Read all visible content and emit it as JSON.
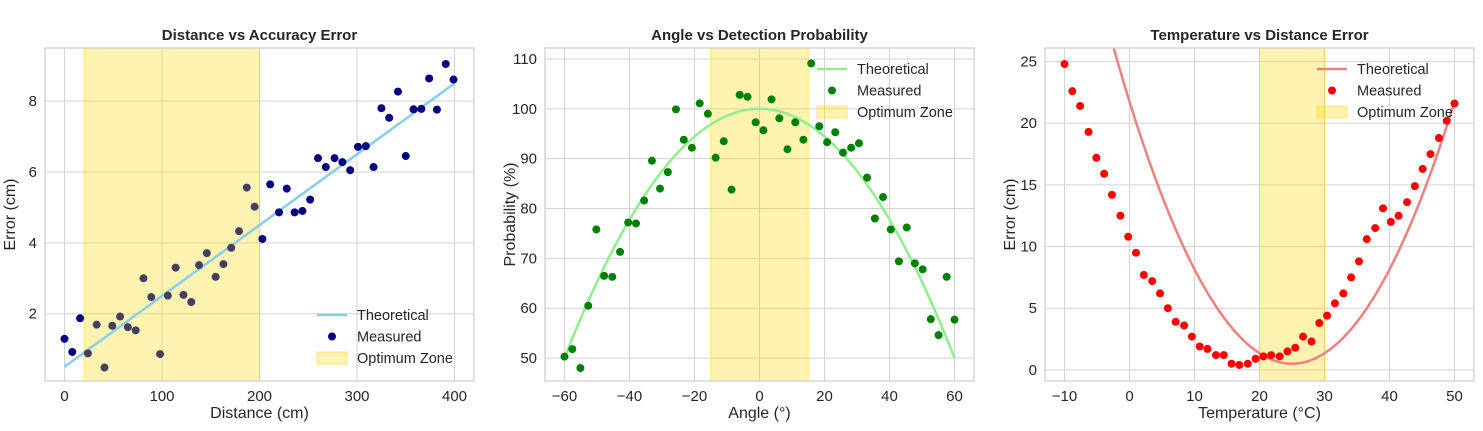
{
  "chart_data": [
    {
      "type": "scatter",
      "title": "Distance vs Accuracy Error",
      "xlabel": "Distance (cm)",
      "ylabel": "Error (cm)",
      "xlim": [
        -20,
        420
      ],
      "ylim": [
        0.1,
        9.5
      ],
      "xticks": [
        0,
        100,
        200,
        300,
        400
      ],
      "yticks": [
        2,
        4,
        6,
        8
      ],
      "grid": true,
      "legend": "bottom-right",
      "optimum_zone": {
        "label": "Optimum Zone",
        "x": [
          20,
          200
        ],
        "color": "#ffd700"
      },
      "theoretical": {
        "name": "Theoretical",
        "color": "#87ceeb",
        "x": [
          0,
          400
        ],
        "y": [
          0.5,
          8.5
        ]
      },
      "measured": {
        "name": "Measured",
        "color": "#000080",
        "x": [
          0,
          8,
          16,
          24,
          33,
          41,
          49,
          57,
          65,
          73,
          81,
          89,
          98,
          106,
          114,
          122,
          130,
          138,
          146,
          155,
          163,
          171,
          179,
          187,
          195,
          203,
          211,
          220,
          228,
          236,
          244,
          252,
          260,
          268,
          277,
          285,
          293,
          301,
          309,
          317,
          325,
          333,
          342,
          350,
          358,
          366,
          374,
          382,
          391,
          399
        ],
        "y": [
          1.29,
          0.92,
          1.87,
          0.88,
          1.69,
          0.48,
          1.66,
          1.92,
          1.62,
          1.53,
          3.0,
          2.47,
          0.86,
          2.51,
          3.3,
          2.53,
          2.33,
          3.37,
          3.71,
          3.04,
          3.4,
          3.86,
          4.33,
          5.56,
          5.02,
          4.11,
          5.65,
          4.86,
          5.53,
          4.86,
          4.9,
          5.22,
          6.39,
          6.14,
          6.39,
          6.28,
          6.05,
          6.71,
          6.73,
          6.14,
          7.8,
          7.53,
          8.27,
          6.45,
          7.77,
          7.78,
          8.64,
          7.76,
          9.05,
          8.61
        ]
      }
    },
    {
      "type": "scatter",
      "title": "Angle vs Detection Probability",
      "xlabel": "Angle (°)",
      "ylabel": "Probability (%)",
      "xlim": [
        -66,
        66
      ],
      "ylim": [
        45.4,
        112.2
      ],
      "xticks": [
        -60,
        -40,
        -20,
        0,
        20,
        40,
        60
      ],
      "yticks": [
        50,
        60,
        70,
        80,
        90,
        100,
        110
      ],
      "grid": true,
      "legend": "top-right",
      "optimum_zone": {
        "label": "Optimum Zone",
        "x": [
          -15,
          15
        ],
        "color": "#ffd700"
      },
      "theoretical": {
        "name": "Theoretical",
        "color": "#90ee90",
        "function": "100 - 50*(x/60)^2"
      },
      "measured": {
        "name": "Measured",
        "color": "#008000",
        "x": [
          -60.0,
          -57.6,
          -55.1,
          -52.7,
          -50.2,
          -47.8,
          -45.3,
          -42.9,
          -40.4,
          -38.0,
          -35.5,
          -33.1,
          -30.6,
          -28.2,
          -25.7,
          -23.3,
          -20.8,
          -18.4,
          -15.9,
          -13.5,
          -11.0,
          -8.6,
          -6.1,
          -3.7,
          -1.2,
          1.2,
          3.7,
          6.1,
          8.6,
          11.0,
          13.5,
          15.9,
          18.4,
          20.8,
          23.3,
          25.7,
          28.2,
          30.6,
          33.1,
          35.5,
          38.0,
          40.4,
          42.9,
          45.3,
          47.8,
          50.2,
          52.7,
          55.1,
          57.6,
          60.0
        ],
        "y": [
          50.3,
          51.8,
          48.0,
          60.5,
          75.8,
          66.5,
          66.3,
          71.3,
          77.2,
          77.0,
          81.6,
          89.6,
          84.0,
          87.3,
          99.9,
          93.8,
          92.2,
          101.1,
          99.0,
          90.2,
          93.5,
          83.8,
          102.8,
          102.4,
          97.3,
          95.7,
          101.9,
          98.1,
          91.9,
          97.3,
          93.8,
          109.1,
          96.5,
          93.3,
          95.3,
          91.2,
          92.2,
          93.1,
          86.2,
          78.0,
          82.3,
          75.8,
          69.4,
          76.2,
          69.0,
          67.8,
          57.8,
          54.6,
          66.3,
          57.7
        ]
      }
    },
    {
      "type": "scatter",
      "title": "Temperature vs Distance Error",
      "xlabel": "Temperature (°C)",
      "ylabel": "Error (cm)",
      "xlim": [
        -13,
        53
      ],
      "ylim": [
        -0.9,
        26.1
      ],
      "xticks": [
        -10,
        0,
        10,
        20,
        30,
        40,
        50
      ],
      "yticks": [
        0,
        5,
        10,
        15,
        20,
        25
      ],
      "grid": true,
      "legend": "top-right",
      "optimum_zone": {
        "label": "Optimum Zone",
        "x": [
          20,
          30
        ],
        "color": "#ffd700"
      },
      "theoretical": {
        "name": "Theoretical",
        "color": "#f08080",
        "function": "0.034*(x-25)^2 + 0.5"
      },
      "measured": {
        "name": "Measured",
        "color": "#ff0000",
        "x": [
          -10.0,
          -8.8,
          -7.6,
          -6.3,
          -5.1,
          -3.9,
          -2.7,
          -1.4,
          -0.2,
          1.0,
          2.2,
          3.5,
          4.7,
          5.9,
          7.1,
          8.4,
          9.6,
          10.8,
          12.0,
          13.3,
          14.5,
          15.7,
          16.9,
          18.2,
          19.4,
          20.6,
          21.8,
          23.1,
          24.3,
          25.5,
          26.7,
          28.0,
          29.2,
          30.4,
          31.6,
          32.9,
          34.1,
          35.3,
          36.5,
          37.8,
          39.0,
          40.2,
          41.4,
          42.7,
          43.9,
          45.1,
          46.3,
          47.6,
          48.8,
          50.0
        ],
        "y": [
          24.8,
          22.6,
          21.4,
          19.3,
          17.2,
          15.9,
          14.2,
          12.5,
          10.8,
          9.5,
          7.7,
          7.2,
          6.2,
          5.0,
          3.9,
          3.6,
          2.7,
          1.9,
          1.7,
          1.2,
          1.2,
          0.5,
          0.4,
          0.5,
          0.9,
          1.1,
          1.2,
          1.1,
          1.5,
          1.8,
          2.7,
          2.3,
          3.8,
          4.4,
          5.4,
          6.2,
          7.5,
          8.8,
          10.6,
          11.5,
          13.1,
          12.0,
          12.5,
          13.6,
          14.9,
          16.3,
          17.5,
          18.8,
          20.2,
          21.6
        ]
      }
    }
  ]
}
